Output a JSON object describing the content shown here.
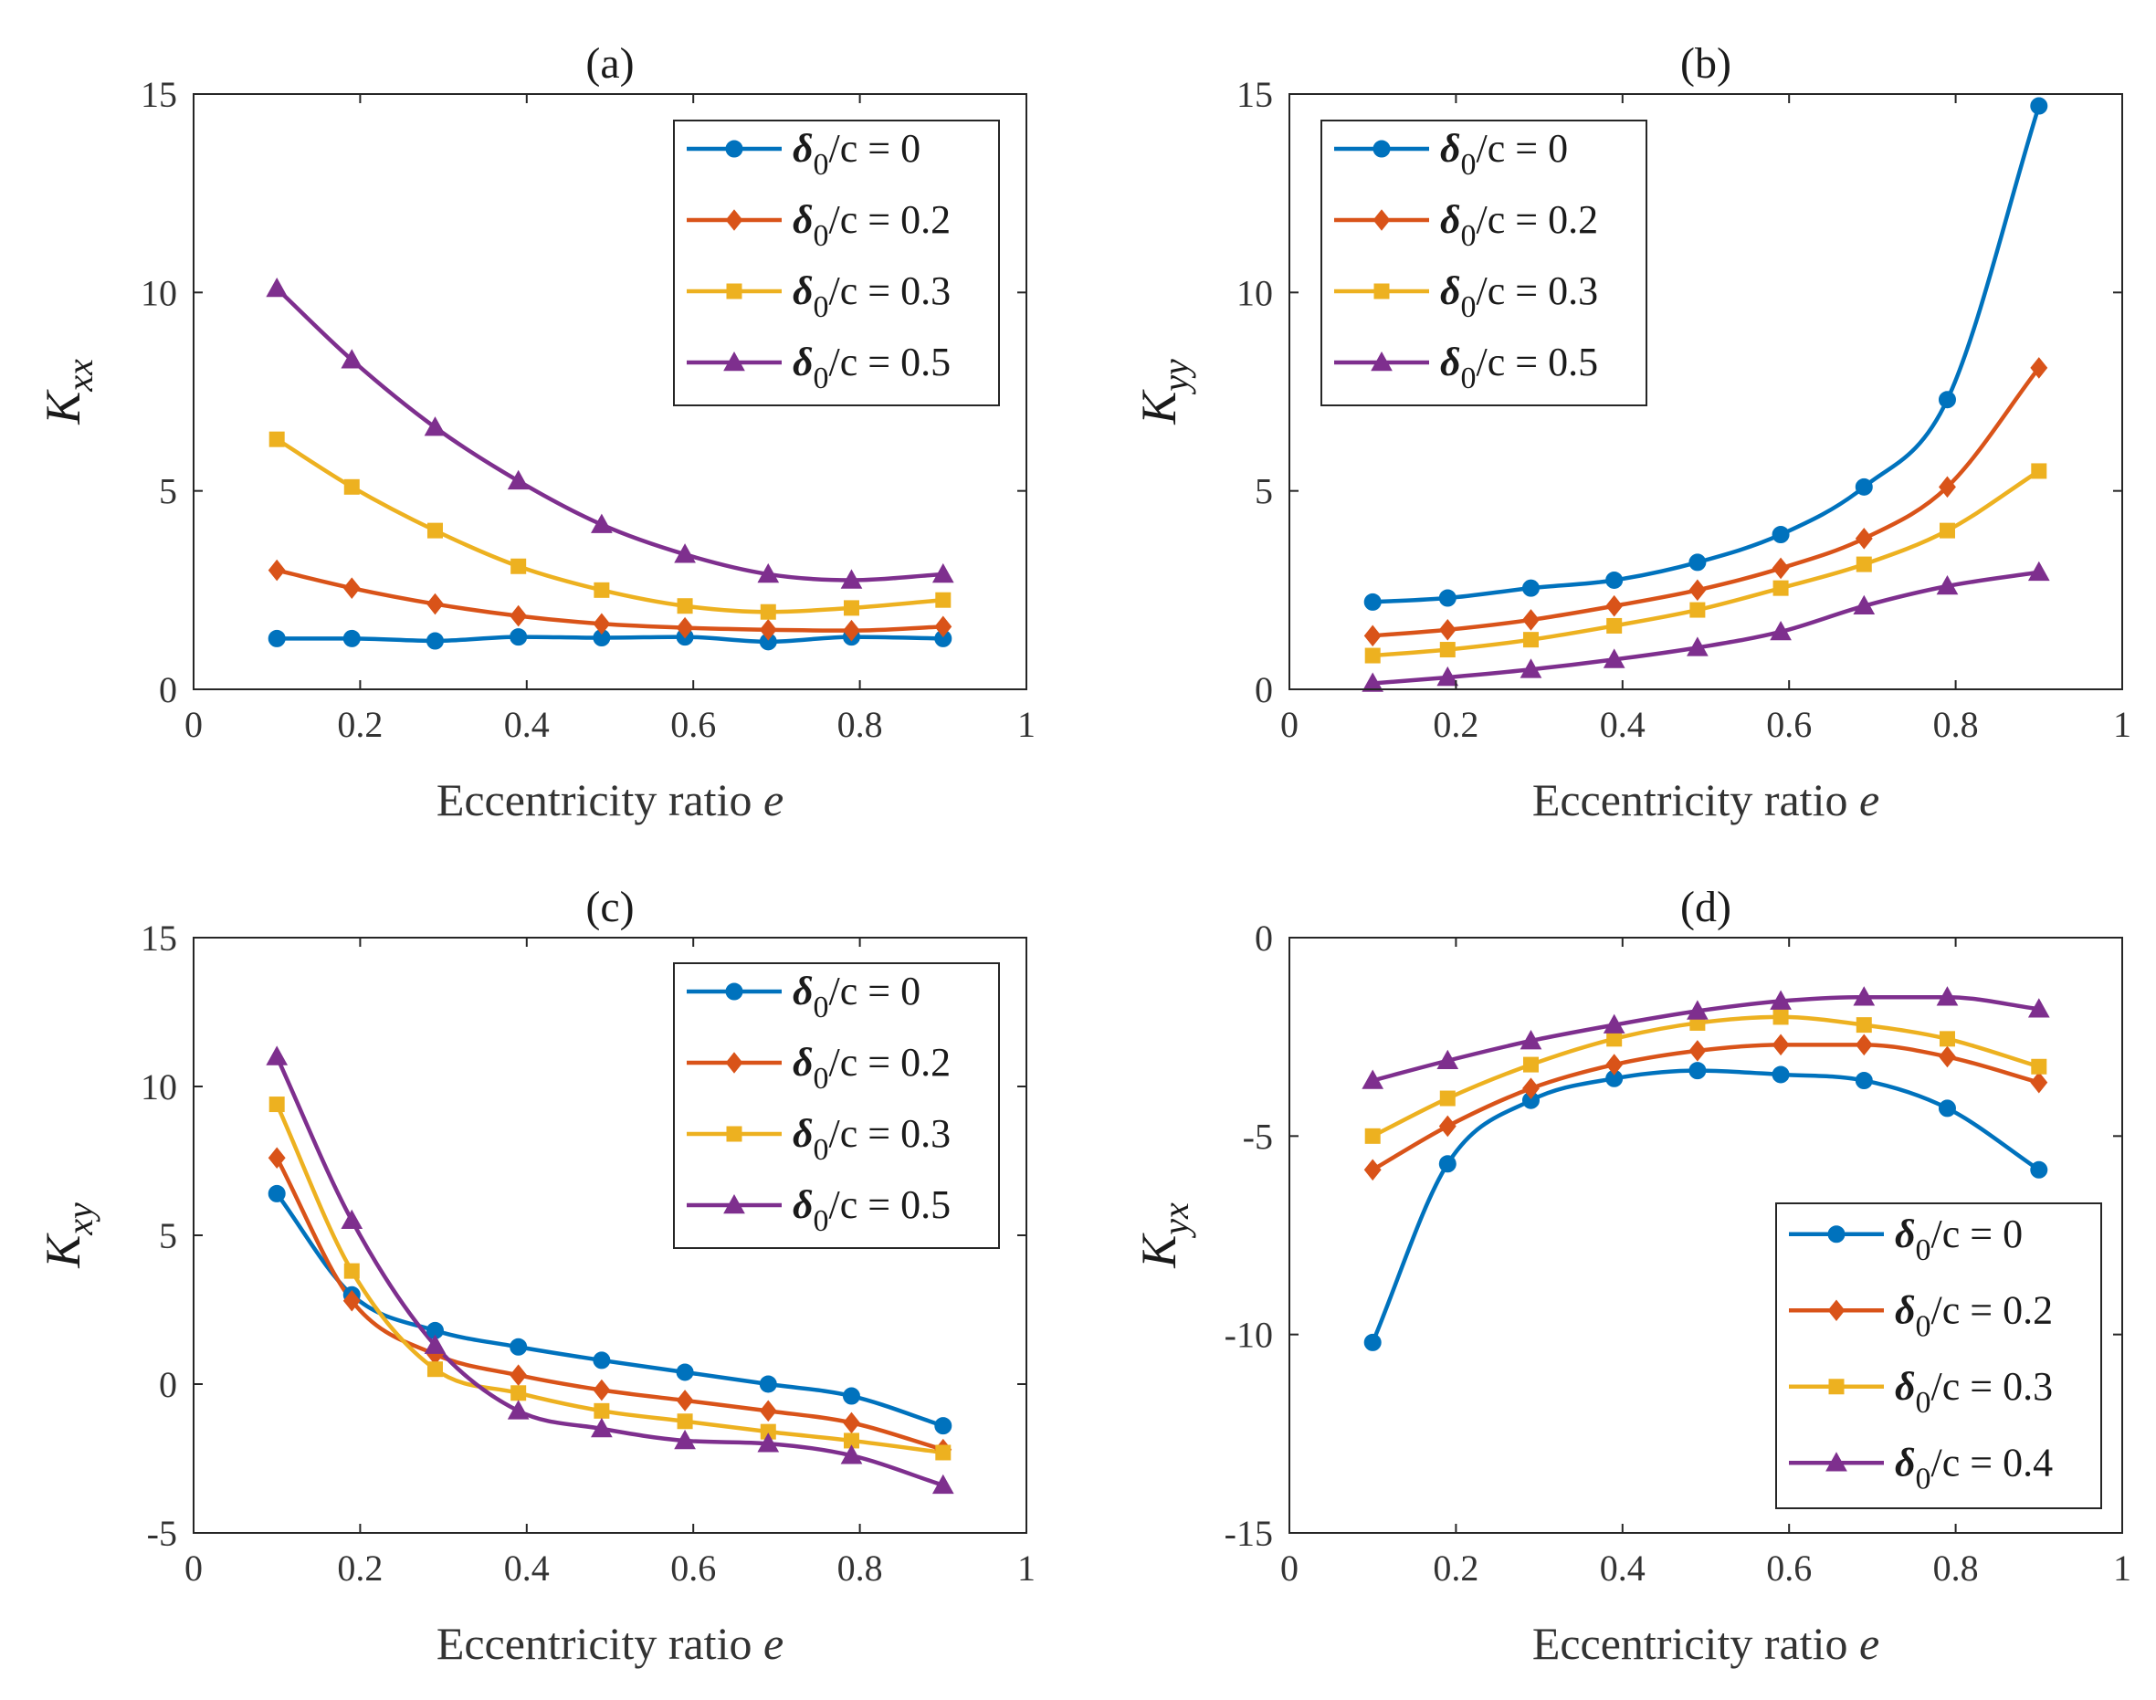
{
  "chart_data": [
    {
      "type": "line",
      "panel": "a",
      "title": "(a)",
      "xlabel": "Eccentricity ratio",
      "xlabel_var": "e",
      "ylabel_main": "K",
      "ylabel_sub": "xx",
      "xlim": [
        0,
        1
      ],
      "ylim": [
        0,
        15
      ],
      "xticks": [
        0,
        0.2,
        0.4,
        0.6,
        0.8,
        1
      ],
      "xtick_labels": [
        "0",
        "0.2",
        "0.4",
        "0.6",
        "0.8",
        "1"
      ],
      "yticks": [
        0,
        5,
        10,
        15
      ],
      "ytick_labels": [
        "0",
        "5",
        "10",
        "15"
      ],
      "legend_position": "top-right",
      "x": [
        0.1,
        0.19,
        0.29,
        0.39,
        0.49,
        0.59,
        0.69,
        0.79,
        0.9
      ],
      "series": [
        {
          "name": "δ0/c = 0",
          "legend_label": "/c = 0",
          "marker": "circle",
          "color": "#0072BD",
          "values": [
            1.28,
            1.28,
            1.22,
            1.32,
            1.3,
            1.32,
            1.2,
            1.32,
            1.28
          ]
        },
        {
          "name": "δ0/c = 0.2",
          "legend_label": "/c = 0.2",
          "marker": "diamond",
          "color": "#D95319",
          "values": [
            3.0,
            2.55,
            2.15,
            1.85,
            1.65,
            1.55,
            1.5,
            1.48,
            1.58
          ]
        },
        {
          "name": "δ0/c = 0.3",
          "legend_label": "/c = 0.3",
          "marker": "square",
          "color": "#EDB120",
          "values": [
            6.3,
            5.1,
            4.0,
            3.1,
            2.5,
            2.1,
            1.95,
            2.05,
            2.25
          ]
        },
        {
          "name": "δ0/c = 0.5",
          "legend_label": "/c = 0.5",
          "marker": "triangle",
          "color": "#7E2F8E",
          "values": [
            10.1,
            8.3,
            6.6,
            5.25,
            4.15,
            3.4,
            2.9,
            2.75,
            2.9
          ]
        }
      ]
    },
    {
      "type": "line",
      "panel": "b",
      "title": "(b)",
      "xlabel": "Eccentricity ratio",
      "xlabel_var": "e",
      "ylabel_main": "K",
      "ylabel_sub": "yy",
      "xlim": [
        0,
        1
      ],
      "ylim": [
        0,
        15
      ],
      "xticks": [
        0,
        0.2,
        0.4,
        0.6,
        0.8,
        1
      ],
      "xtick_labels": [
        "0",
        "0.2",
        "0.4",
        "0.6",
        "0.8",
        "1"
      ],
      "yticks": [
        0,
        5,
        10,
        15
      ],
      "ytick_labels": [
        "0",
        "5",
        "10",
        "15"
      ],
      "legend_position": "top-left",
      "x": [
        0.1,
        0.19,
        0.29,
        0.39,
        0.49,
        0.59,
        0.69,
        0.79,
        0.9
      ],
      "series": [
        {
          "name": "δ0/c = 0",
          "legend_label": "/c = 0",
          "marker": "circle",
          "color": "#0072BD",
          "values": [
            2.2,
            2.3,
            2.55,
            2.75,
            3.2,
            3.9,
            5.1,
            7.3,
            14.7
          ]
        },
        {
          "name": "δ0/c = 0.2",
          "legend_label": "/c = 0.2",
          "marker": "diamond",
          "color": "#D95319",
          "values": [
            1.35,
            1.5,
            1.75,
            2.1,
            2.5,
            3.05,
            3.8,
            5.1,
            8.1
          ]
        },
        {
          "name": "δ0/c = 0.3",
          "legend_label": "/c = 0.3",
          "marker": "square",
          "color": "#EDB120",
          "values": [
            0.85,
            1.0,
            1.25,
            1.6,
            2.0,
            2.55,
            3.15,
            4.0,
            5.5
          ]
        },
        {
          "name": "δ0/c = 0.5",
          "legend_label": "/c = 0.5",
          "marker": "triangle",
          "color": "#7E2F8E",
          "values": [
            0.15,
            0.3,
            0.5,
            0.75,
            1.05,
            1.45,
            2.1,
            2.6,
            2.95
          ]
        }
      ]
    },
    {
      "type": "line",
      "panel": "c",
      "title": "(c)",
      "xlabel": "Eccentricity ratio",
      "xlabel_var": "e",
      "ylabel_main": "K",
      "ylabel_sub": "xy",
      "xlim": [
        0,
        1
      ],
      "ylim": [
        -5,
        15
      ],
      "xticks": [
        0,
        0.2,
        0.4,
        0.6,
        0.8,
        1
      ],
      "xtick_labels": [
        "0",
        "0.2",
        "0.4",
        "0.6",
        "0.8",
        "1"
      ],
      "yticks": [
        -5,
        0,
        5,
        10,
        15
      ],
      "ytick_labels": [
        "-5",
        "0",
        "5",
        "10",
        "15"
      ],
      "legend_position": "top-right",
      "x": [
        0.1,
        0.19,
        0.29,
        0.39,
        0.49,
        0.59,
        0.69,
        0.79,
        0.9
      ],
      "series": [
        {
          "name": "δ0/c = 0",
          "legend_label": "/c = 0",
          "marker": "circle",
          "color": "#0072BD",
          "values": [
            6.4,
            3.0,
            1.8,
            1.25,
            0.8,
            0.4,
            0.0,
            -0.4,
            -1.4
          ]
        },
        {
          "name": "δ0/c = 0.2",
          "legend_label": "/c = 0.2",
          "marker": "diamond",
          "color": "#D95319",
          "values": [
            7.6,
            2.8,
            1.0,
            0.3,
            -0.2,
            -0.55,
            -0.9,
            -1.3,
            -2.2
          ]
        },
        {
          "name": "δ0/c = 0.3",
          "legend_label": "/c = 0.3",
          "marker": "square",
          "color": "#EDB120",
          "values": [
            9.4,
            3.8,
            0.5,
            -0.3,
            -0.9,
            -1.25,
            -1.6,
            -1.9,
            -2.3
          ]
        },
        {
          "name": "δ0/c = 0.5",
          "legend_label": "/c = 0.5",
          "marker": "triangle",
          "color": "#7E2F8E",
          "values": [
            11.0,
            5.5,
            1.3,
            -0.9,
            -1.5,
            -1.9,
            -2.0,
            -2.4,
            -3.4
          ]
        }
      ]
    },
    {
      "type": "line",
      "panel": "d",
      "title": "(d)",
      "xlabel": "Eccentricity ratio",
      "xlabel_var": "e",
      "ylabel_main": "K",
      "ylabel_sub": "yx",
      "xlim": [
        0,
        1
      ],
      "ylim": [
        -15,
        0
      ],
      "xticks": [
        0,
        0.2,
        0.4,
        0.6,
        0.8,
        1
      ],
      "xtick_labels": [
        "0",
        "0.2",
        "0.4",
        "0.6",
        "0.8",
        "1"
      ],
      "yticks": [
        -15,
        -10,
        -5,
        0
      ],
      "ytick_labels": [
        "-15",
        "-10",
        "-5",
        "0"
      ],
      "legend_position": "bottom-right",
      "x": [
        0.1,
        0.19,
        0.29,
        0.39,
        0.49,
        0.59,
        0.69,
        0.79,
        0.9
      ],
      "series": [
        {
          "name": "δ0/c = 0",
          "legend_label": "/c = 0",
          "marker": "circle",
          "color": "#0072BD",
          "values": [
            -10.2,
            -5.7,
            -4.1,
            -3.55,
            -3.35,
            -3.45,
            -3.6,
            -4.3,
            -5.85
          ]
        },
        {
          "name": "δ0/c = 0.2",
          "legend_label": "/c = 0.2",
          "marker": "diamond",
          "color": "#D95319",
          "values": [
            -5.85,
            -4.75,
            -3.8,
            -3.2,
            -2.85,
            -2.7,
            -2.7,
            -3.0,
            -3.65
          ]
        },
        {
          "name": "δ0/c = 0.3",
          "legend_label": "/c = 0.3",
          "marker": "square",
          "color": "#EDB120",
          "values": [
            -5.0,
            -4.05,
            -3.2,
            -2.55,
            -2.15,
            -2.0,
            -2.2,
            -2.55,
            -3.25
          ]
        },
        {
          "name": "δ0/c = 0.4",
          "legend_label": "/c = 0.4",
          "marker": "triangle",
          "color": "#7E2F8E",
          "values": [
            -3.6,
            -3.1,
            -2.6,
            -2.2,
            -1.85,
            -1.6,
            -1.5,
            -1.5,
            -1.8
          ]
        }
      ]
    }
  ]
}
